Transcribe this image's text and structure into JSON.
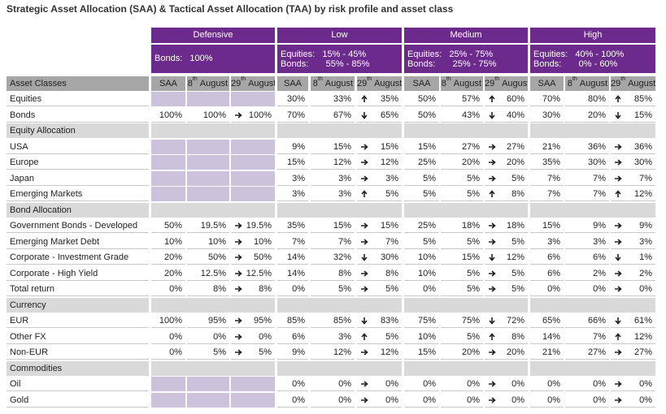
{
  "title": "Strategic Asset Allocation (SAA) & Tactical Asset Allocation (TAA) by risk profile and asset class",
  "profiles": [
    {
      "name": "Defensive",
      "ranges": [
        "Bonds:   100%"
      ]
    },
    {
      "name": "Low",
      "ranges": [
        "Equities:   15% - 45%",
        "Bonds:       55% - 85%"
      ]
    },
    {
      "name": "Medium",
      "ranges": [
        "Equities:   25% - 75%",
        "Bonds:       25% - 75%"
      ]
    },
    {
      "name": "High",
      "ranges": [
        "Equities:   40% - 100%",
        "Bonds:       0% - 60%"
      ]
    }
  ],
  "columns": {
    "label": "Asset Classes",
    "saa": "SAA",
    "taa1": {
      "day": "8",
      "suffix": "th",
      "month": "August"
    },
    "taa2": {
      "day": "29",
      "suffix": "th",
      "month": "August"
    }
  },
  "rows": [
    {
      "label": "Equities",
      "cells": [
        null,
        [
          "30%",
          "33%",
          "up",
          "35%"
        ],
        [
          "50%",
          "57%",
          "up",
          "60%"
        ],
        [
          "70%",
          "80%",
          "up",
          "85%"
        ]
      ]
    },
    {
      "label": "Bonds",
      "cells": [
        [
          "100%",
          "100%",
          "right",
          "100%"
        ],
        [
          "70%",
          "67%",
          "down",
          "65%"
        ],
        [
          "50%",
          "43%",
          "down",
          "40%"
        ],
        [
          "30%",
          "20%",
          "down",
          "15%"
        ]
      ]
    },
    {
      "section": "Equity Allocation"
    },
    {
      "label": "USA",
      "cells": [
        null,
        [
          "9%",
          "15%",
          "right",
          "15%"
        ],
        [
          "15%",
          "27%",
          "right",
          "27%"
        ],
        [
          "21%",
          "36%",
          "right",
          "36%"
        ]
      ]
    },
    {
      "label": "Europe",
      "cells": [
        null,
        [
          "15%",
          "12%",
          "right",
          "12%"
        ],
        [
          "25%",
          "20%",
          "right",
          "20%"
        ],
        [
          "35%",
          "30%",
          "right",
          "30%"
        ]
      ]
    },
    {
      "label": "Japan",
      "cells": [
        null,
        [
          "3%",
          "3%",
          "right",
          "3%"
        ],
        [
          "5%",
          "5%",
          "right",
          "5%"
        ],
        [
          "7%",
          "7%",
          "right",
          "7%"
        ]
      ]
    },
    {
      "label": "Emerging Markets",
      "cells": [
        null,
        [
          "3%",
          "3%",
          "up",
          "5%"
        ],
        [
          "5%",
          "5%",
          "up",
          "8%"
        ],
        [
          "7%",
          "7%",
          "up",
          "12%"
        ]
      ]
    },
    {
      "section": "Bond Allocation"
    },
    {
      "label": "Government Bonds - Developed",
      "cells": [
        [
          "50%",
          "19.5%",
          "right",
          "19.5%"
        ],
        [
          "35%",
          "15%",
          "right",
          "15%"
        ],
        [
          "25%",
          "18%",
          "right",
          "18%"
        ],
        [
          "15%",
          "9%",
          "right",
          "9%"
        ]
      ]
    },
    {
      "label": "Emerging Market Debt",
      "cells": [
        [
          "10%",
          "10%",
          "right",
          "10%"
        ],
        [
          "7%",
          "7%",
          "right",
          "7%"
        ],
        [
          "5%",
          "5%",
          "right",
          "5%"
        ],
        [
          "3%",
          "3%",
          "right",
          "3%"
        ]
      ]
    },
    {
      "label": "Corporate - Investment Grade",
      "cells": [
        [
          "20%",
          "50%",
          "right",
          "50%"
        ],
        [
          "14%",
          "32%",
          "down",
          "30%"
        ],
        [
          "10%",
          "15%",
          "down",
          "12%"
        ],
        [
          "6%",
          "6%",
          "down",
          "1%"
        ]
      ]
    },
    {
      "label": "Corporate - High Yield",
      "cells": [
        [
          "20%",
          "12.5%",
          "right",
          "12.5%"
        ],
        [
          "14%",
          "8%",
          "right",
          "8%"
        ],
        [
          "10%",
          "5%",
          "right",
          "5%"
        ],
        [
          "6%",
          "2%",
          "right",
          "2%"
        ]
      ]
    },
    {
      "label": "Total return",
      "cells": [
        [
          "0%",
          "8%",
          "right",
          "8%"
        ],
        [
          "0%",
          "5%",
          "right",
          "5%"
        ],
        [
          "0%",
          "5%",
          "right",
          "5%"
        ],
        [
          "0%",
          "0%",
          "right",
          "0%"
        ]
      ]
    },
    {
      "section": "Currency"
    },
    {
      "label": "EUR",
      "cells": [
        [
          "100%",
          "95%",
          "right",
          "95%"
        ],
        [
          "85%",
          "85%",
          "down",
          "83%"
        ],
        [
          "75%",
          "75%",
          "down",
          "72%"
        ],
        [
          "65%",
          "66%",
          "down",
          "61%"
        ]
      ]
    },
    {
      "label": "Other FX",
      "cells": [
        [
          "0%",
          "0%",
          "right",
          "0%"
        ],
        [
          "6%",
          "3%",
          "up",
          "5%"
        ],
        [
          "10%",
          "5%",
          "up",
          "8%"
        ],
        [
          "14%",
          "7%",
          "up",
          "12%"
        ]
      ]
    },
    {
      "label": "Non-EUR",
      "cells": [
        [
          "0%",
          "5%",
          "right",
          "5%"
        ],
        [
          "9%",
          "12%",
          "right",
          "12%"
        ],
        [
          "15%",
          "20%",
          "right",
          "20%"
        ],
        [
          "21%",
          "27%",
          "right",
          "27%"
        ]
      ]
    },
    {
      "section": "Commodities"
    },
    {
      "label": "Oil",
      "cells": [
        null,
        [
          "0%",
          "0%",
          "right",
          "0%"
        ],
        [
          "0%",
          "0%",
          "right",
          "0%"
        ],
        [
          "0%",
          "0%",
          "right",
          "0%"
        ]
      ]
    },
    {
      "label": "Gold",
      "cells": [
        null,
        [
          "0%",
          "0%",
          "right",
          "0%"
        ],
        [
          "0%",
          "0%",
          "right",
          "0%"
        ],
        [
          "0%",
          "0%",
          "right",
          "0%"
        ]
      ]
    }
  ]
}
